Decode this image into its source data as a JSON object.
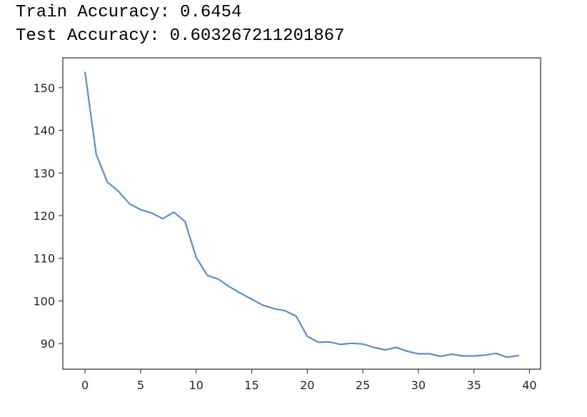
{
  "output": {
    "train_label": "Train Accuracy:",
    "train_value": "0.6454",
    "test_label": "Test Accuracy:",
    "test_value": "0.603267211201867"
  },
  "chart_data": {
    "type": "line",
    "title": "",
    "xlabel": "",
    "ylabel": "",
    "xlim": [
      -2,
      41
    ],
    "ylim": [
      84,
      157
    ],
    "xticks": [
      0,
      5,
      10,
      15,
      20,
      25,
      30,
      35,
      40
    ],
    "yticks": [
      90,
      100,
      110,
      120,
      130,
      140,
      150
    ],
    "grid": false,
    "line_color": "#5b8fc7",
    "series": [
      {
        "x": [
          0,
          1,
          2,
          3,
          4,
          5,
          6,
          7,
          8,
          9,
          10,
          11,
          12,
          13,
          14,
          15,
          16,
          17,
          18,
          19,
          20,
          21,
          22,
          23,
          24,
          25,
          26,
          27,
          28,
          29,
          30,
          31,
          32,
          33,
          34,
          35,
          36,
          37,
          38,
          39
        ],
        "values": [
          153.6,
          134.4,
          127.9,
          125.7,
          122.8,
          121.4,
          120.6,
          119.3,
          120.8,
          118.6,
          110.2,
          106.0,
          105.1,
          103.3,
          101.8,
          100.4,
          99.0,
          98.2,
          97.7,
          96.4,
          91.7,
          90.3,
          90.4,
          89.8,
          90.1,
          89.9,
          89.1,
          88.5,
          89.1,
          88.2,
          87.6,
          87.6,
          87.0,
          87.5,
          87.1,
          87.1,
          87.3,
          87.7,
          86.8,
          87.2
        ]
      }
    ]
  }
}
